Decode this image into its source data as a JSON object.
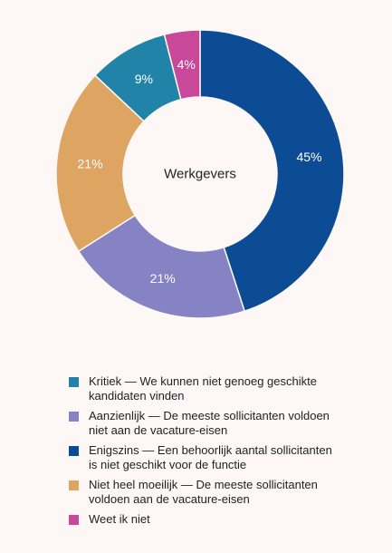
{
  "chart_data": {
    "type": "pie",
    "donut": true,
    "center_label": "Werkgevers",
    "slices": [
      {
        "label": "Enigszins — Een behoorlijk aantal sollicitanten is niet geschikt voor de functie",
        "value": 45,
        "display": "45%",
        "color": "#0b4c94"
      },
      {
        "label": "Aanzienlijk — De meeste sollicitanten voldoen niet aan de vacature-eisen",
        "value": 21,
        "display": "21%",
        "color": "#8583c3"
      },
      {
        "label": "Niet heel moeilijk — De meeste sollicitanten voldoen aan de vacature-eisen",
        "value": 21,
        "display": "21%",
        "color": "#dea562"
      },
      {
        "label": "Kritiek — We kunnen niet genoeg geschikte kandidaten vinden",
        "value": 9,
        "display": "9%",
        "color": "#2183a8"
      },
      {
        "label": "Weet ik niet",
        "value": 4,
        "display": "4%",
        "color": "#c8489a"
      }
    ],
    "legend_position": "bottom",
    "legend": [
      {
        "label": "Kritiek — We kunnen niet genoeg geschikte kandidaten vinden",
        "color": "#2183a8"
      },
      {
        "label": "Aanzienlijk — De meeste sollicitanten voldoen niet aan de vacature-eisen",
        "color": "#8583c3"
      },
      {
        "label": "Enigszins — Een behoorlijk aantal sollicitanten is niet geschikt voor de functie",
        "color": "#0b4c94"
      },
      {
        "label": "Niet heel moeilijk — De meeste sollicitanten voldoen aan de vacature-eisen",
        "color": "#dea562"
      },
      {
        "label": "Weet ik niet",
        "color": "#c8489a"
      }
    ]
  }
}
